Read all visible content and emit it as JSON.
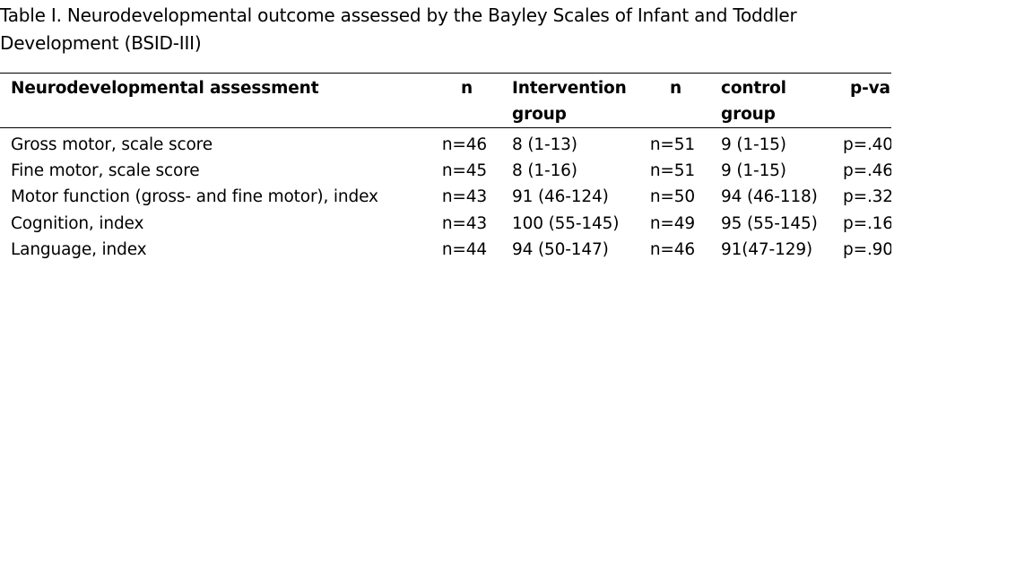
{
  "caption": "Table I. Neurodevelopmental outcome assessed by the Bayley Scales of Infant and Toddler Development (BSID-III)",
  "table": {
    "headers": {
      "assessment": "Neurodevelopmental assessment",
      "n1": "n",
      "intervention_line1": "Intervention",
      "intervention_line2": "group",
      "n2": "n",
      "control_line1": "control",
      "control_line2": "group",
      "p": "p-val"
    },
    "rows": [
      {
        "assessment": "Gross motor, scale score",
        "n1": "n=46",
        "intervention": "8 (1-13)",
        "n2": "n=51",
        "control": "9 (1-15)",
        "p": "p=.40"
      },
      {
        "assessment": "Fine motor, scale score",
        "n1": "n=45",
        "intervention": "8 (1-16)",
        "n2": "n=51",
        "control": "9 (1-15)",
        "p": "p=.46"
      },
      {
        "assessment": "Motor function (gross- and fine motor), index",
        "n1": "n=43",
        "intervention": "91 (46-124)",
        "n2": "n=50",
        "control": "94 (46-118)",
        "p": "p=.32"
      },
      {
        "assessment": "Cognition, index",
        "n1": "n=43",
        "intervention": "100 (55-145)",
        "n2": "n=49",
        "control": "95 (55-145)",
        "p": "p=.16"
      },
      {
        "assessment": "Language, index",
        "n1": "n=44",
        "intervention": "94 (50-147)",
        "n2": "n=46",
        "control": "91(47-129)",
        "p": "p=.90"
      }
    ]
  }
}
